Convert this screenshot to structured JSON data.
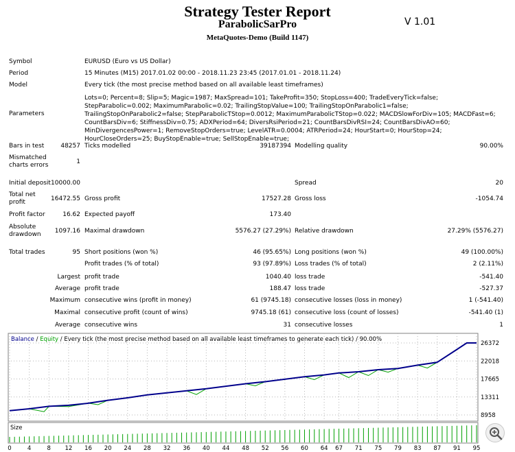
{
  "header": {
    "title": "Strategy Tester Report",
    "ea_name": "ParabolicSarPro",
    "build": "MetaQuotes-Demo (Build 1147)",
    "version": "V 1.01"
  },
  "info": {
    "symbol_label": "Symbol",
    "symbol_value": "EURUSD (Euro vs US Dollar)",
    "period_label": "Period",
    "period_value": "15 Minutes (M15) 2017.01.02 00:00 - 2018.11.23 23:45 (2017.01.01 - 2018.11.24)",
    "model_label": "Model",
    "model_value": "Every tick (the most precise method based on all available least timeframes)",
    "parameters_label": "Parameters",
    "parameters_value": "Lots=0; Percent=8; Slip=5; Magic=1987; MaxSpread=101; TakeProfit=350; StopLoss=400; TradeEveryTick=false; StepParabolic=0.002; MaximumParabolic=0.02; TrailingStopValue=100; TrailingStopOnParabolic1=false; TrailingStopOnParabolic2=false; StepParabolicTStop=0.0012; MaximumParabolicTStop=0.022; MACDSlowForDiv=105; MACDFast=6; CountBarsDiv=6; StiffnessDiv=0.75; ADXPeriod=64; DiversRsiPeriod=21; CountBarsDivRSI=24; CountBarsDivAO=60; MinDivergencesPower=1; RemoveStopOrders=true; LevelATR=0.0004; ATRPeriod=24; HourStart=0; HourStop=24; HourCloseOrders=25; BuyStopEnable=true; SellStopEnable=true;"
  },
  "stats": {
    "bars_in_test_label": "Bars in test",
    "bars_in_test": "48257",
    "ticks_modelled_label": "Ticks modelled",
    "ticks_modelled": "39187394",
    "modelling_quality_label": "Modelling quality",
    "modelling_quality": "90.00%",
    "mismatched_label_1": "Mismatched",
    "mismatched_label_2": "charts errors",
    "mismatched": "1",
    "initial_deposit_label": "Initial deposit",
    "initial_deposit": "10000.00",
    "spread_label": "Spread",
    "spread": "20",
    "total_net_profit_label_1": "Total net",
    "total_net_profit_label_2": "profit",
    "total_net_profit": "16472.55",
    "gross_profit_label": "Gross profit",
    "gross_profit": "17527.28",
    "gross_loss_label": "Gross loss",
    "gross_loss": "-1054.74",
    "profit_factor_label": "Profit factor",
    "profit_factor": "16.62",
    "expected_payoff_label": "Expected payoff",
    "expected_payoff": "173.40",
    "absolute_drawdown_label_1": "Absolute",
    "absolute_drawdown_label_2": "drawdown",
    "absolute_drawdown": "1097.16",
    "maximal_drawdown_label": "Maximal drawdown",
    "maximal_drawdown": "5576.27 (27.29%)",
    "relative_drawdown_label": "Relative drawdown",
    "relative_drawdown": "27.29% (5576.27)",
    "total_trades_label": "Total trades",
    "total_trades": "95",
    "short_positions_label": "Short positions (won %)",
    "short_positions": "46 (95.65%)",
    "long_positions_label": "Long positions (won %)",
    "long_positions": "49 (100.00%)",
    "profit_trades_label": "Profit trades (% of total)",
    "profit_trades": "93 (97.89%)",
    "loss_trades_label": "Loss trades (% of total)",
    "loss_trades": "2 (2.11%)",
    "largest_label": "Largest",
    "largest_profit_label": "profit trade",
    "largest_profit": "1040.40",
    "largest_loss_label": "loss trade",
    "largest_loss": "-541.40",
    "average_label": "Average",
    "average_profit_label": "profit trade",
    "average_profit": "188.47",
    "average_loss_label": "loss trade",
    "average_loss": "-527.37",
    "maximum_label": "Maximum",
    "max_cons_wins_label": "consecutive wins (profit in money)",
    "max_cons_wins": "61 (9745.18)",
    "max_cons_losses_label": "consecutive losses (loss in money)",
    "max_cons_losses": "1 (-541.40)",
    "maximal_label": "Maximal",
    "maximal_cons_profit_label": "consecutive profit (count of wins)",
    "maximal_cons_profit": "9745.18 (61)",
    "maximal_cons_loss_label": "consecutive loss (count of losses)",
    "maximal_cons_loss": "-541.40 (1)",
    "average2_label": "Average",
    "avg_cons_wins_label": "consecutive wins",
    "avg_cons_wins": "31",
    "avg_cons_losses_label": "consecutive losses",
    "avg_cons_losses": "1"
  },
  "chart_legend": {
    "balance": "Balance",
    "sep": " / ",
    "equity": "Equity",
    "rest": " / Every tick (the most precise method based on all available least timeframes to generate each tick) / 90.00%",
    "size_label": "Size"
  },
  "colors": {
    "balance": "#00008b",
    "equity": "#00a000",
    "size_bars": "#00a000",
    "grid": "#b4b4b4",
    "border": "#808080"
  },
  "chart_data": {
    "type": "line",
    "y_ticks": [
      8958,
      13311,
      17665,
      22018,
      26372
    ],
    "ylim": [
      8958,
      26372
    ],
    "x_ticks": [
      0,
      4,
      8,
      12,
      16,
      20,
      24,
      28,
      32,
      36,
      40,
      44,
      48,
      52,
      56,
      60,
      64,
      67,
      71,
      75,
      79,
      83,
      87,
      91,
      95
    ],
    "xlim": [
      0,
      95
    ],
    "series": [
      {
        "name": "Balance",
        "points": [
          [
            0,
            10000
          ],
          [
            4,
            10450
          ],
          [
            8,
            11050
          ],
          [
            12,
            11300
          ],
          [
            16,
            11800
          ],
          [
            20,
            12500
          ],
          [
            24,
            13100
          ],
          [
            28,
            13800
          ],
          [
            32,
            14300
          ],
          [
            36,
            14800
          ],
          [
            40,
            15300
          ],
          [
            44,
            15900
          ],
          [
            48,
            16500
          ],
          [
            52,
            17000
          ],
          [
            56,
            17600
          ],
          [
            60,
            18200
          ],
          [
            64,
            18650
          ],
          [
            67,
            19100
          ],
          [
            71,
            19400
          ],
          [
            75,
            19900
          ],
          [
            79,
            20200
          ],
          [
            83,
            21000
          ],
          [
            87,
            21700
          ],
          [
            91,
            24800
          ],
          [
            93,
            26372
          ],
          [
            95,
            26372
          ]
        ]
      },
      {
        "name": "Equity",
        "points": [
          [
            0,
            10000
          ],
          [
            4,
            10450
          ],
          [
            7,
            9750
          ],
          [
            8,
            11050
          ],
          [
            12,
            11000
          ],
          [
            16,
            11800
          ],
          [
            18,
            11450
          ],
          [
            20,
            12500
          ],
          [
            24,
            13100
          ],
          [
            28,
            13800
          ],
          [
            32,
            14300
          ],
          [
            36,
            14800
          ],
          [
            38,
            13900
          ],
          [
            40,
            15300
          ],
          [
            44,
            15900
          ],
          [
            48,
            16500
          ],
          [
            50,
            16000
          ],
          [
            52,
            17000
          ],
          [
            56,
            17600
          ],
          [
            60,
            18200
          ],
          [
            62,
            17500
          ],
          [
            64,
            18650
          ],
          [
            67,
            19100
          ],
          [
            69,
            18000
          ],
          [
            71,
            19400
          ],
          [
            73,
            18500
          ],
          [
            75,
            19900
          ],
          [
            77,
            19300
          ],
          [
            79,
            20200
          ],
          [
            83,
            21000
          ],
          [
            85,
            20300
          ],
          [
            87,
            21700
          ],
          [
            91,
            24800
          ],
          [
            93,
            26372
          ],
          [
            95,
            26372
          ]
        ]
      }
    ]
  }
}
